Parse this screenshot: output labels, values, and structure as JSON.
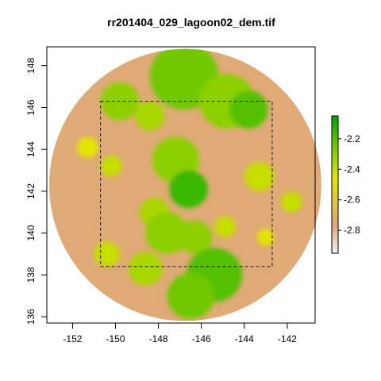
{
  "chart_data": {
    "type": "heatmap",
    "title": "rr201404_029_lagoon02_dem.tif",
    "xlim": [
      -153.2,
      -140.7
    ],
    "ylim": [
      135.7,
      148.9
    ],
    "x_ticks": [
      -152,
      -150,
      -148,
      -146,
      -144,
      -142
    ],
    "y_ticks": [
      136,
      138,
      140,
      142,
      144,
      146,
      148
    ],
    "x_tick_labels": [
      "-152",
      "-150",
      "-148",
      "-146",
      "-144",
      "-142"
    ],
    "y_tick_labels": [
      "136",
      "138",
      "140",
      "142",
      "144",
      "146",
      "148"
    ],
    "raster": {
      "shape": "circle",
      "center": [
        -146.75,
        142.3
      ],
      "radius": 6.5,
      "value_range": [
        -2.95,
        -2.05
      ],
      "background_value": -2.75,
      "patches": [
        {
          "x": -146.8,
          "y": 147.5,
          "r": 1.6,
          "value": -2.25
        },
        {
          "x": -144.8,
          "y": 146.3,
          "r": 1.3,
          "value": -2.3
        },
        {
          "x": -143.8,
          "y": 145.9,
          "r": 0.9,
          "value": -2.2
        },
        {
          "x": -149.8,
          "y": 146.3,
          "r": 0.9,
          "value": -2.3
        },
        {
          "x": -148.4,
          "y": 145.6,
          "r": 0.7,
          "value": -2.35
        },
        {
          "x": -147.2,
          "y": 143.5,
          "r": 1.1,
          "value": -2.3
        },
        {
          "x": -146.6,
          "y": 142.1,
          "r": 0.9,
          "value": -2.15
        },
        {
          "x": -148.2,
          "y": 141.0,
          "r": 0.7,
          "value": -2.35
        },
        {
          "x": -147.6,
          "y": 140.0,
          "r": 1.0,
          "value": -2.3
        },
        {
          "x": -146.3,
          "y": 139.8,
          "r": 0.8,
          "value": -2.3
        },
        {
          "x": -145.4,
          "y": 138.0,
          "r": 1.3,
          "value": -2.2
        },
        {
          "x": -146.5,
          "y": 137.0,
          "r": 1.1,
          "value": -2.25
        },
        {
          "x": -148.6,
          "y": 138.3,
          "r": 0.8,
          "value": -2.35
        },
        {
          "x": -150.4,
          "y": 139.0,
          "r": 0.6,
          "value": -2.4
        },
        {
          "x": -151.3,
          "y": 144.1,
          "r": 0.5,
          "value": -2.45
        },
        {
          "x": -150.2,
          "y": 143.2,
          "r": 0.5,
          "value": -2.4
        },
        {
          "x": -143.3,
          "y": 142.7,
          "r": 0.7,
          "value": -2.4
        },
        {
          "x": -141.8,
          "y": 141.5,
          "r": 0.5,
          "value": -2.4
        },
        {
          "x": -144.9,
          "y": 140.3,
          "r": 0.5,
          "value": -2.4
        },
        {
          "x": -143.0,
          "y": 139.8,
          "r": 0.4,
          "value": -2.45
        }
      ]
    },
    "dashed_box": {
      "x": [
        -150.7,
        -142.7
      ],
      "y": [
        138.4,
        146.3
      ]
    },
    "colorbar": {
      "ticks": [
        -2.8,
        -2.6,
        -2.4,
        -2.2
      ],
      "tick_labels": [
        "-2.8",
        "-2.6",
        "-2.4",
        "-2.2"
      ],
      "range": [
        -2.95,
        -2.05
      ]
    },
    "colors": {
      "low": "#f2f2f2",
      "mid_low": "#dfa67e",
      "mid": "#e6e600",
      "mid_high": "#63c600",
      "high": "#00a600"
    },
    "grid": false,
    "legend": "colorbar-right"
  }
}
